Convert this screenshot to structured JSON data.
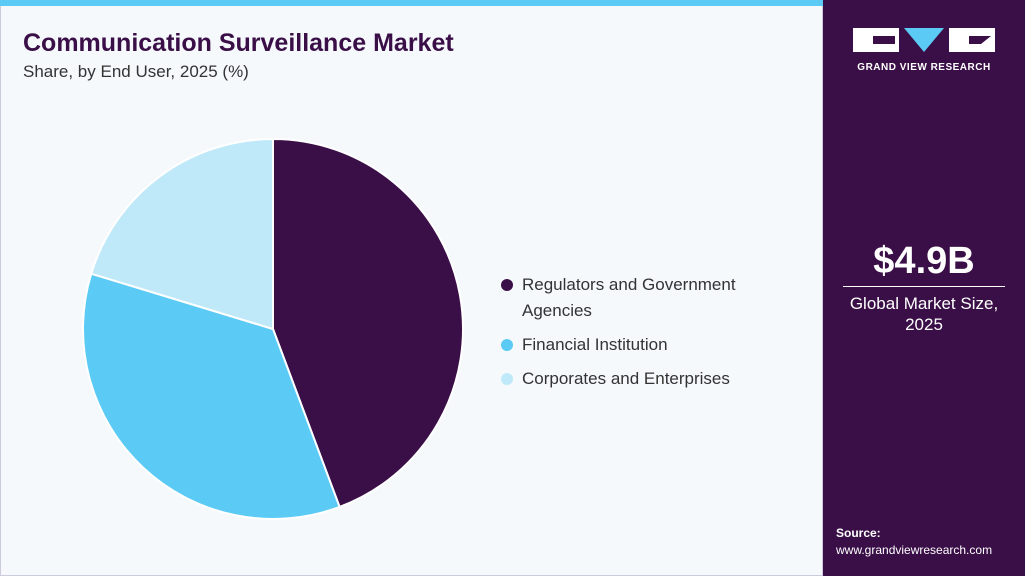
{
  "chart_data": {
    "type": "pie",
    "title": "Communication Surveillance Market",
    "subtitle": "Share, by End User, 2025 (%)",
    "categories": [
      "Regulators and Government Agencies",
      "Financial Institution",
      "Corporates and Enterprises"
    ],
    "values": [
      44.3,
      35.4,
      20.3
    ],
    "colors": [
      "#3a0f47",
      "#5bcbf5",
      "#bfe9f9"
    ]
  },
  "brand": "GRAND VIEW RESEARCH",
  "market_size": "$4.9B",
  "market_size_label": "Global Market Size, 2025",
  "source_label": "Source:",
  "source_url": "www.grandviewresearch.com"
}
